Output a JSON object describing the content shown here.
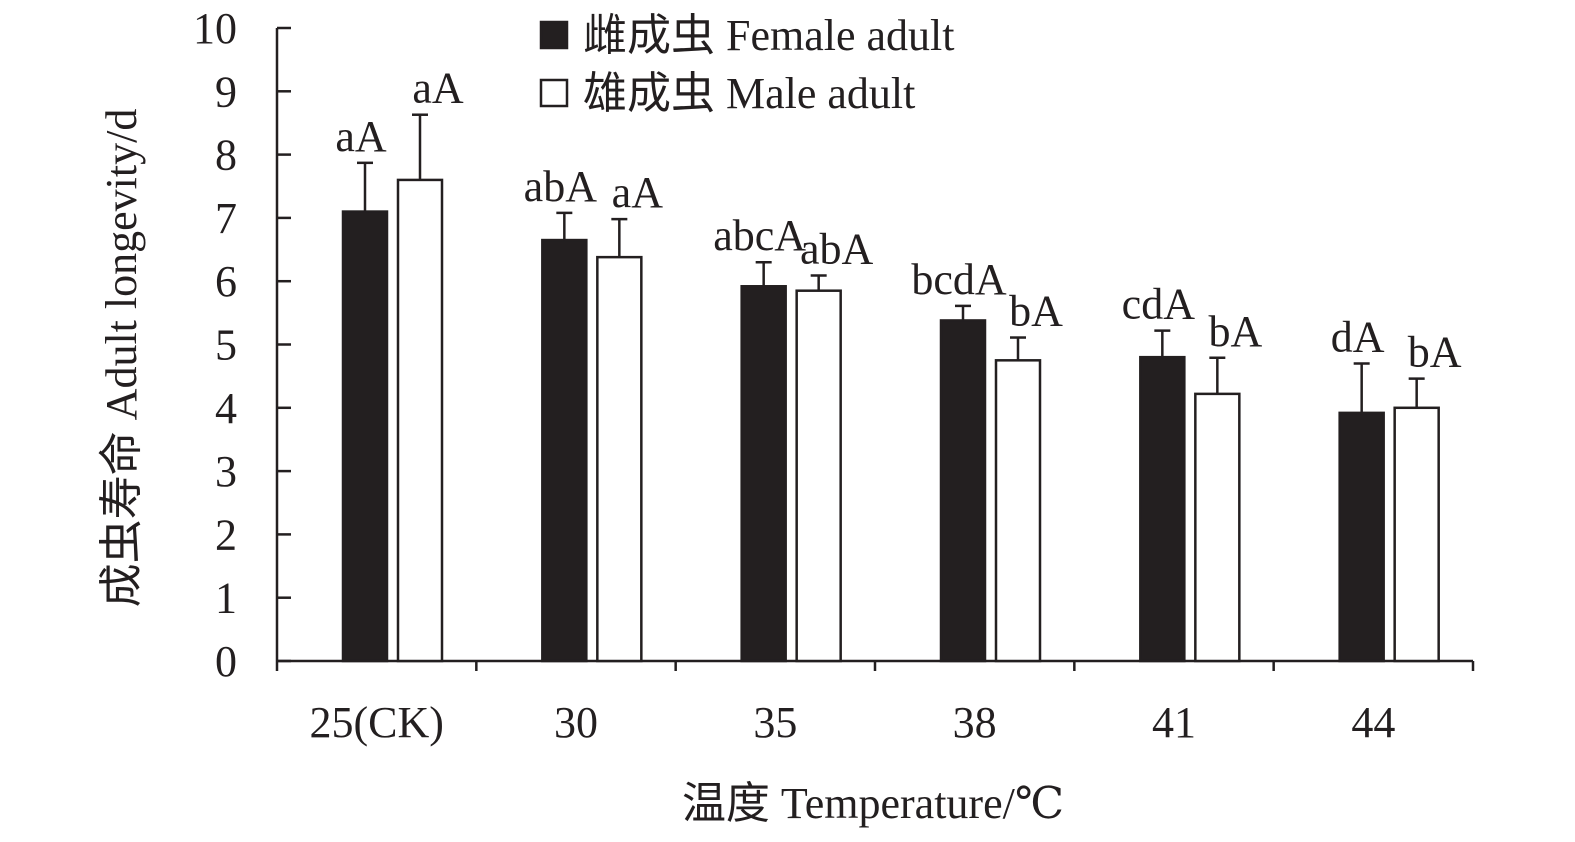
{
  "chart_data": {
    "type": "bar",
    "title": "",
    "xlabel": "温度 Temperature/℃",
    "ylabel": "成虫寿命 Adult longevity/d",
    "ylim": [
      0,
      10
    ],
    "yticks": [
      0,
      1,
      2,
      3,
      4,
      5,
      6,
      7,
      8,
      9,
      10
    ],
    "categories": [
      "25(CK)",
      "30",
      "35",
      "38",
      "41",
      "44"
    ],
    "series": [
      {
        "name": "雌成虫 Female adult",
        "fill": "#231f20",
        "values": [
          7.1,
          6.65,
          5.92,
          5.38,
          4.8,
          3.92
        ],
        "errors": [
          0.77,
          0.43,
          0.38,
          0.23,
          0.42,
          0.78
        ],
        "labels": [
          "aA",
          "abA",
          "abcA",
          "bcdA",
          "cdA",
          "dA"
        ]
      },
      {
        "name": "雄成虫 Male adult",
        "fill": "#ffffff",
        "values": [
          7.6,
          6.38,
          5.85,
          4.75,
          4.22,
          4.0
        ],
        "errors": [
          1.03,
          0.6,
          0.24,
          0.36,
          0.57,
          0.46
        ],
        "labels": [
          "aA",
          "aA",
          "abA",
          "bA",
          "bA",
          "bA"
        ]
      }
    ],
    "legend": "top-center",
    "grid": false
  }
}
